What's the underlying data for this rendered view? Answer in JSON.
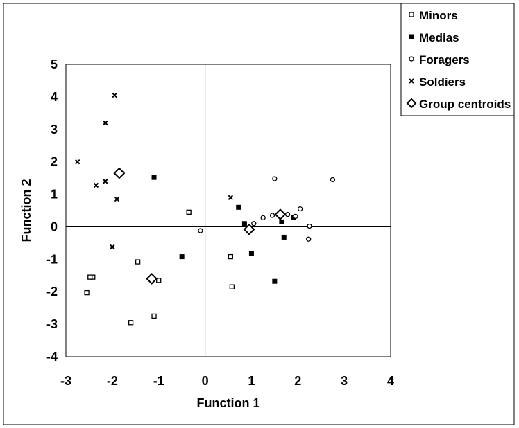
{
  "chart_data": {
    "type": "scatter",
    "title": "",
    "xlabel": "Function 1",
    "ylabel": "Function 2",
    "xlim": [
      -3,
      4
    ],
    "ylim": [
      -4,
      5
    ],
    "xticks": [
      "-3",
      "-2",
      "-1",
      "0",
      "1",
      "2",
      "3",
      "4"
    ],
    "yticks": [
      "5",
      "4",
      "3",
      "2",
      "1",
      "0",
      "-1",
      "-2",
      "-3",
      "-4"
    ],
    "grid": false,
    "legend_position": "top-right",
    "series": [
      {
        "name": "Minors",
        "marker": "open-square",
        "points": [
          [
            -0.35,
            0.45
          ],
          [
            -1.45,
            -1.08
          ],
          [
            -1.0,
            -1.65
          ],
          [
            -2.42,
            -1.55
          ],
          [
            -2.48,
            -1.55
          ],
          [
            -2.55,
            -2.03
          ],
          [
            -1.6,
            -2.95
          ],
          [
            -1.1,
            -2.75
          ],
          [
            0.55,
            -0.92
          ],
          [
            0.58,
            -1.85
          ]
        ]
      },
      {
        "name": "Medias",
        "marker": "filled-square",
        "points": [
          [
            -1.1,
            1.52
          ],
          [
            -0.5,
            -0.92
          ],
          [
            0.72,
            0.6
          ],
          [
            0.85,
            0.1
          ],
          [
            1.0,
            -0.83
          ],
          [
            1.5,
            -1.68
          ],
          [
            1.65,
            0.15
          ],
          [
            1.7,
            -0.32
          ],
          [
            1.9,
            0.28
          ]
        ]
      },
      {
        "name": "Foragers",
        "marker": "open-circle",
        "points": [
          [
            -0.1,
            -0.12
          ],
          [
            1.05,
            0.1
          ],
          [
            1.25,
            0.28
          ],
          [
            1.45,
            0.35
          ],
          [
            1.5,
            1.48
          ],
          [
            1.78,
            0.38
          ],
          [
            1.95,
            0.32
          ],
          [
            2.05,
            0.55
          ],
          [
            2.23,
            -0.38
          ],
          [
            2.25,
            0.02
          ],
          [
            2.75,
            1.45
          ]
        ]
      },
      {
        "name": "Soldiers",
        "marker": "x",
        "points": [
          [
            -1.95,
            4.05
          ],
          [
            -2.15,
            3.2
          ],
          [
            -2.75,
            2.0
          ],
          [
            -2.35,
            1.28
          ],
          [
            -2.15,
            1.4
          ],
          [
            -1.9,
            0.85
          ],
          [
            -2.0,
            -0.62
          ],
          [
            0.55,
            0.9
          ]
        ]
      },
      {
        "name": "Group centroids",
        "marker": "open-diamond",
        "points": [
          [
            -1.85,
            1.65
          ],
          [
            -1.15,
            -1.6
          ],
          [
            0.95,
            -0.08
          ],
          [
            1.62,
            0.38
          ]
        ]
      }
    ]
  }
}
